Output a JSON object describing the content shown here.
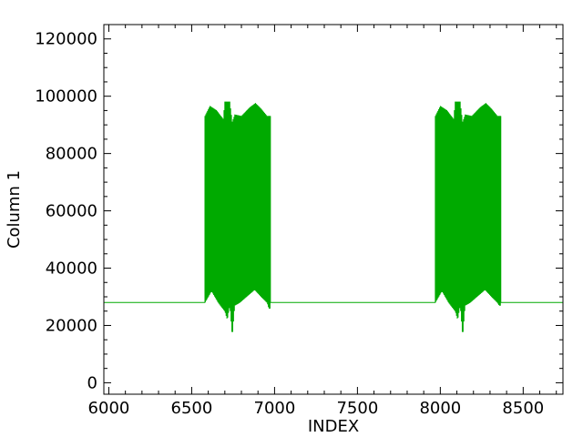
{
  "chart_data": {
    "type": "line",
    "xlabel": "INDEX",
    "ylabel": "Column 1",
    "xlim": [
      5970,
      8740
    ],
    "ylim": [
      -4000,
      125000
    ],
    "x_ticks": [
      6000,
      6500,
      7000,
      7500,
      8000,
      8500
    ],
    "y_ticks": [
      0,
      20000,
      40000,
      60000,
      80000,
      100000,
      120000
    ],
    "x_tick_labels": [
      "6000",
      "6500",
      "7000",
      "7500",
      "8000",
      "8500"
    ],
    "y_tick_labels": [
      "0",
      "20000",
      "40000",
      "60000",
      "80000",
      "100000",
      "120000"
    ],
    "x_minor_step": 100,
    "y_minor_step": 5000,
    "grid": false,
    "series": [
      {
        "color": "#00aa00",
        "baseline": 28000,
        "bursts": [
          {
            "x_start": 6580,
            "x_end": 6975,
            "upper_envelope": [
              [
                6580,
                93000
              ],
              [
                6610,
                96500
              ],
              [
                6650,
                95000
              ],
              [
                6690,
                92000
              ],
              [
                6700,
                98000
              ],
              [
                6730,
                98000
              ],
              [
                6745,
                91000
              ],
              [
                6760,
                93500
              ],
              [
                6800,
                93000
              ],
              [
                6850,
                96000
              ],
              [
                6885,
                97500
              ],
              [
                6920,
                95500
              ],
              [
                6955,
                93000
              ],
              [
                6965,
                93000
              ]
            ],
            "lower_envelope": [
              [
                6580,
                28000
              ],
              [
                6620,
                32000
              ],
              [
                6660,
                28000
              ],
              [
                6700,
                25000
              ],
              [
                6715,
                22000
              ],
              [
                6730,
                27000
              ],
              [
                6745,
                16000
              ],
              [
                6760,
                27000
              ],
              [
                6790,
                28000
              ],
              [
                6850,
                31000
              ],
              [
                6880,
                32500
              ],
              [
                6920,
                30000
              ],
              [
                6955,
                28000
              ],
              [
                6965,
                26000
              ]
            ]
          },
          {
            "x_start": 7970,
            "x_end": 8365,
            "upper_envelope": [
              [
                7970,
                93000
              ],
              [
                8000,
                96500
              ],
              [
                8040,
                95000
              ],
              [
                8080,
                92000
              ],
              [
                8090,
                98000
              ],
              [
                8120,
                98000
              ],
              [
                8135,
                91000
              ],
              [
                8150,
                93500
              ],
              [
                8190,
                93000
              ],
              [
                8240,
                96000
              ],
              [
                8275,
                97500
              ],
              [
                8310,
                95500
              ],
              [
                8345,
                93000
              ],
              [
                8355,
                93000
              ]
            ],
            "lower_envelope": [
              [
                7970,
                28000
              ],
              [
                8010,
                32000
              ],
              [
                8050,
                28000
              ],
              [
                8090,
                25000
              ],
              [
                8105,
                22000
              ],
              [
                8120,
                27000
              ],
              [
                8135,
                16000
              ],
              [
                8150,
                27000
              ],
              [
                8180,
                28000
              ],
              [
                8240,
                31000
              ],
              [
                8270,
                32500
              ],
              [
                8310,
                30000
              ],
              [
                8345,
                28000
              ],
              [
                8355,
                27000
              ]
            ]
          }
        ]
      }
    ]
  }
}
